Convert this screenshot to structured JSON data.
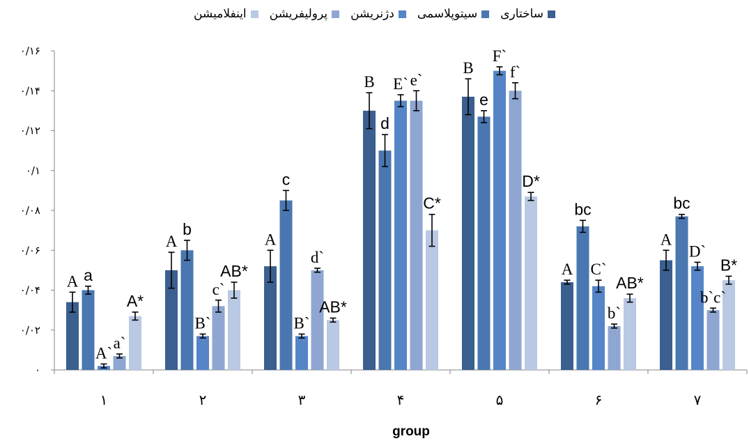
{
  "chart_data": {
    "type": "bar",
    "xlabel": "group",
    "ylabel": "",
    "ylim": [
      0,
      0.16
    ],
    "grid": false,
    "legend_position": "top",
    "yticks": [
      {
        "value": 0,
        "label": "۰"
      },
      {
        "value": 0.02,
        "label": "۰/۰۲"
      },
      {
        "value": 0.04,
        "label": "۰/۰۴"
      },
      {
        "value": 0.06,
        "label": "۰/۰۶"
      },
      {
        "value": 0.08,
        "label": "۰/۰۸"
      },
      {
        "value": 0.1,
        "label": "۰/۱"
      },
      {
        "value": 0.12,
        "label": "۰/۱۲"
      },
      {
        "value": 0.14,
        "label": "۰/۱۴"
      },
      {
        "value": 0.16,
        "label": "۰/۱۶"
      }
    ],
    "categories": [
      "۱",
      "۲",
      "۳",
      "۴",
      "۵",
      "۶",
      "۷"
    ],
    "series": [
      {
        "name": "ساختاری",
        "color": "#3B5F8F",
        "label_font": "serif",
        "values": [
          0.034,
          0.05,
          0.052,
          0.13,
          0.137,
          0.044,
          0.055
        ],
        "errors": [
          0.005,
          0.009,
          0.008,
          0.009,
          0.009,
          0.001,
          0.005
        ],
        "labels": [
          "A",
          "A",
          "A",
          "B",
          "B",
          "A",
          "A"
        ]
      },
      {
        "name": "سیتوپلاسمی",
        "color": "#4A77B0",
        "label_font": "sans",
        "values": [
          0.04,
          0.06,
          0.085,
          0.11,
          0.127,
          0.072,
          0.077
        ],
        "errors": [
          0.002,
          0.005,
          0.005,
          0.008,
          0.003,
          0.003,
          0.001
        ],
        "labels": [
          "a",
          "b",
          "c",
          "d",
          "e",
          "bc",
          "bc"
        ]
      },
      {
        "name": "دژنریشن",
        "color": "#5585C6",
        "label_font": "serif",
        "values": [
          0.002,
          0.017,
          0.017,
          0.135,
          0.15,
          0.042,
          0.052
        ],
        "errors": [
          0.001,
          0.001,
          0.001,
          0.003,
          0.002,
          0.003,
          0.002
        ],
        "labels": [
          "A`",
          "B`",
          "B`",
          "E`",
          "F`",
          "C`",
          "D`"
        ]
      },
      {
        "name": "پرولیفریشن",
        "color": "#8EA6D1",
        "label_font": "serif",
        "values": [
          0.007,
          0.032,
          0.05,
          0.135,
          0.14,
          0.022,
          0.03
        ],
        "errors": [
          0.001,
          0.003,
          0.001,
          0.005,
          0.004,
          0.001,
          0.001
        ],
        "labels": [
          "a`",
          "c`",
          "d`",
          "e`",
          "f`",
          "b`",
          "b`c`"
        ]
      },
      {
        "name": "اینفلامیشن",
        "color": "#B9C8E3",
        "label_font": "sans",
        "values": [
          0.027,
          0.04,
          0.025,
          0.07,
          0.087,
          0.036,
          0.045
        ],
        "errors": [
          0.002,
          0.004,
          0.001,
          0.008,
          0.002,
          0.002,
          0.002
        ],
        "labels": [
          "A*",
          "AB*",
          "AB*",
          "C*",
          "D*",
          "AB*",
          "B*"
        ]
      }
    ]
  }
}
